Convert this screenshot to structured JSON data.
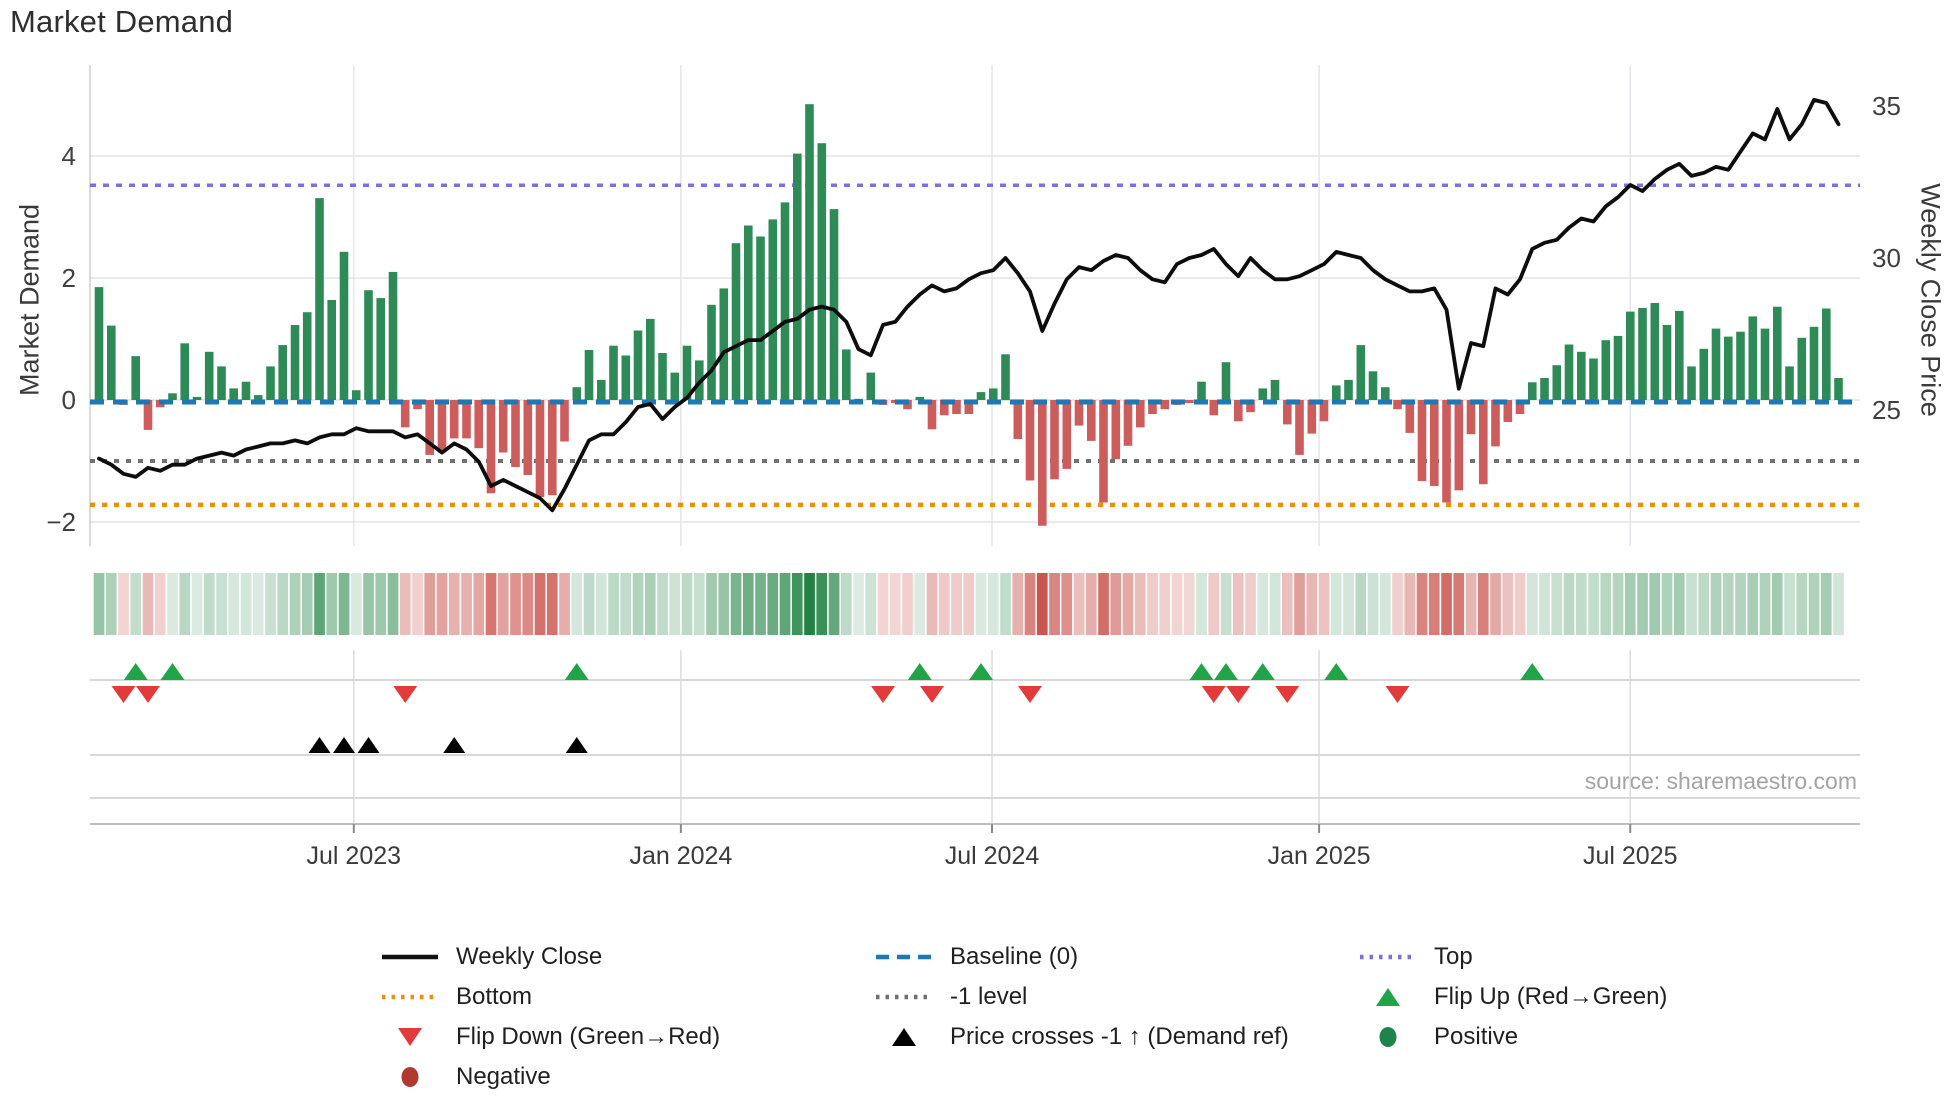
{
  "title": "Market Demand",
  "source_note": "source: sharemaestro.com",
  "axes": {
    "y_left_label": "Market Demand",
    "y_right_label": "Weekly Close Price",
    "y_left_ticks": [
      "4",
      "2",
      "0",
      "−2"
    ],
    "y_right_ticks": [
      "35",
      "30",
      "25"
    ],
    "x_ticks": [
      {
        "label": "Jul 2023",
        "week": 20.8
      },
      {
        "label": "Jan 2024",
        "week": 47.5
      },
      {
        "label": "Jul 2024",
        "week": 72.9
      },
      {
        "label": "Jan 2025",
        "week": 99.6
      },
      {
        "label": "Jul 2025",
        "week": 125.0
      }
    ]
  },
  "chart_data": {
    "type": "bar+line",
    "x_unit": "week index (weekly data, ~Feb 2023 to ~Nov 2025)",
    "ylim_demand": [
      -2.3,
      5.1
    ],
    "ylim_price": [
      21.5,
      35.5
    ],
    "grid": true,
    "legend_position": "bottom",
    "series": [
      {
        "name": "Market Demand",
        "type": "bar",
        "axis": "left",
        "values": [
          1.85,
          1.22,
          -0.08,
          0.72,
          -0.49,
          -0.12,
          0.11,
          0.93,
          0.05,
          0.79,
          0.55,
          0.19,
          0.3,
          0.08,
          0.55,
          0.9,
          1.23,
          1.44,
          3.31,
          1.64,
          2.43,
          0.16,
          1.8,
          1.67,
          2.1,
          -0.45,
          -0.15,
          -0.9,
          -0.86,
          -0.63,
          -0.63,
          -0.79,
          -1.53,
          -0.86,
          -1.1,
          -1.23,
          -1.59,
          -1.56,
          -0.68,
          0.21,
          0.82,
          0.33,
          0.89,
          0.73,
          1.14,
          1.33,
          0.77,
          0.45,
          0.89,
          0.65,
          1.56,
          1.83,
          2.57,
          2.86,
          2.68,
          2.96,
          3.24,
          4.04,
          4.85,
          4.21,
          3.13,
          0.83,
          0.02,
          0.45,
          -0.08,
          -0.05,
          -0.15,
          0.05,
          -0.48,
          -0.25,
          -0.23,
          -0.23,
          0.13,
          0.19,
          0.75,
          -0.64,
          -1.32,
          -2.06,
          -1.3,
          -1.13,
          -0.42,
          -0.67,
          -1.68,
          -0.97,
          -0.75,
          -0.45,
          -0.23,
          -0.15,
          -0.08,
          -0.05,
          0.3,
          -0.25,
          0.62,
          -0.35,
          -0.2,
          0.19,
          0.33,
          -0.4,
          -0.9,
          -0.55,
          -0.35,
          0.24,
          0.33,
          0.9,
          0.47,
          0.21,
          -0.15,
          -0.54,
          -1.33,
          -1.41,
          -1.68,
          -1.48,
          -0.56,
          -1.38,
          -0.76,
          -0.36,
          -0.23,
          0.29,
          0.36,
          0.57,
          0.91,
          0.79,
          0.68,
          0.98,
          1.05,
          1.45,
          1.51,
          1.59,
          1.23,
          1.46,
          0.55,
          0.84,
          1.17,
          1.04,
          1.12,
          1.37,
          1.17,
          1.53,
          0.55,
          1.02,
          1.2,
          1.5,
          0.36
        ]
      },
      {
        "name": "Weekly Close",
        "type": "line",
        "axis": "right",
        "values": [
          23.4,
          23.2,
          22.9,
          22.8,
          23.1,
          23.0,
          23.2,
          23.2,
          23.4,
          23.5,
          23.6,
          23.5,
          23.7,
          23.8,
          23.9,
          23.9,
          24.0,
          23.9,
          24.1,
          24.2,
          24.2,
          24.4,
          24.3,
          24.3,
          24.3,
          24.1,
          24.2,
          23.9,
          23.6,
          23.9,
          23.7,
          23.3,
          22.5,
          22.7,
          22.5,
          22.3,
          22.1,
          21.7,
          22.4,
          23.2,
          24.0,
          24.2,
          24.2,
          24.6,
          25.1,
          25.2,
          24.7,
          25.1,
          25.4,
          25.9,
          26.3,
          26.9,
          27.1,
          27.3,
          27.3,
          27.6,
          27.9,
          28.0,
          28.3,
          28.4,
          28.3,
          27.9,
          27.0,
          26.8,
          27.8,
          27.9,
          28.4,
          28.8,
          29.1,
          28.9,
          29.0,
          29.3,
          29.5,
          29.6,
          30.0,
          29.5,
          28.9,
          27.6,
          28.5,
          29.3,
          29.7,
          29.6,
          29.9,
          30.1,
          30.0,
          29.6,
          29.3,
          29.2,
          29.8,
          30.0,
          30.1,
          30.3,
          29.8,
          29.4,
          30.0,
          29.6,
          29.3,
          29.3,
          29.4,
          29.6,
          29.8,
          30.2,
          30.1,
          30.0,
          29.6,
          29.3,
          29.1,
          28.9,
          28.9,
          29.0,
          28.3,
          25.7,
          27.2,
          27.1,
          29.0,
          28.8,
          29.3,
          30.3,
          30.5,
          30.6,
          31.0,
          31.3,
          31.2,
          31.7,
          32.0,
          32.4,
          32.2,
          32.6,
          32.9,
          33.1,
          32.7,
          32.8,
          33.0,
          32.9,
          33.5,
          34.1,
          33.9,
          34.9,
          33.9,
          34.4,
          35.2,
          35.1,
          34.4
        ]
      }
    ],
    "ref_lines": [
      {
        "name": "Top",
        "value": 3.52,
        "color": "#7C6FE0",
        "style": "dotted"
      },
      {
        "name": "Baseline (0)",
        "value": 0,
        "color": "#1F77B4",
        "style": "dashed"
      },
      {
        "name": "-1 level",
        "value": -1,
        "color": "#707070",
        "style": "dotted"
      },
      {
        "name": "Bottom",
        "value": -1.72,
        "color": "#F28C0C",
        "style": "dotted"
      }
    ],
    "markers": {
      "flip_up_weeks": [
        3,
        6,
        39,
        67,
        72,
        90,
        92,
        95,
        101,
        117
      ],
      "flip_down_weeks": [
        2,
        4,
        25,
        64,
        68,
        76,
        91,
        93,
        97,
        106
      ],
      "price_cross_up_weeks": [
        18,
        20,
        22,
        29,
        39
      ]
    },
    "heatmap_strip": {
      "desc": "weekly demand sign/intensity cells under main chart",
      "positive_base_rgb": [
        33,
        130,
        67
      ],
      "negative_base_rgb": [
        202,
        84,
        78
      ]
    },
    "colors": {
      "demand_positive": "#2E8B57",
      "demand_negative": "#CD5C5C",
      "price_line": "#0d0d0d",
      "flip_up": "#21A447",
      "flip_down": "#E23B3B",
      "price_cross": "#000000",
      "positive_dot": "#1E8449",
      "negative_dot": "#B03A2E"
    }
  },
  "legend": {
    "items": [
      {
        "label": "Weekly Close",
        "glyph": "line-solid",
        "color": "#111111",
        "col": 0,
        "row": 0
      },
      {
        "label": "Baseline (0)",
        "glyph": "line-dashed",
        "color": "#1F77B4",
        "col": 1,
        "row": 0
      },
      {
        "label": "Top",
        "glyph": "line-dotted",
        "color": "#7C6FE0",
        "col": 2,
        "row": 0
      },
      {
        "label": "Bottom",
        "glyph": "line-dotted",
        "color": "#F28C0C",
        "col": 0,
        "row": 1
      },
      {
        "label": "-1 level",
        "glyph": "line-dotted",
        "color": "#707070",
        "col": 1,
        "row": 1
      },
      {
        "label": "Flip Up (Red→Green)",
        "glyph": "tri-up",
        "color": "#21A447",
        "col": 2,
        "row": 1
      },
      {
        "label": "Flip Down (Green→Red)",
        "glyph": "tri-down",
        "color": "#E23B3B",
        "col": 0,
        "row": 2
      },
      {
        "label": "Price crosses -1 ↑ (Demand ref)",
        "glyph": "tri-up",
        "color": "#000000",
        "col": 1,
        "row": 2
      },
      {
        "label": "Positive",
        "glyph": "circle",
        "color": "#1E8449",
        "col": 2,
        "row": 2
      },
      {
        "label": "Negative",
        "glyph": "circle",
        "color": "#B03A2E",
        "col": 0,
        "row": 3
      }
    ]
  }
}
